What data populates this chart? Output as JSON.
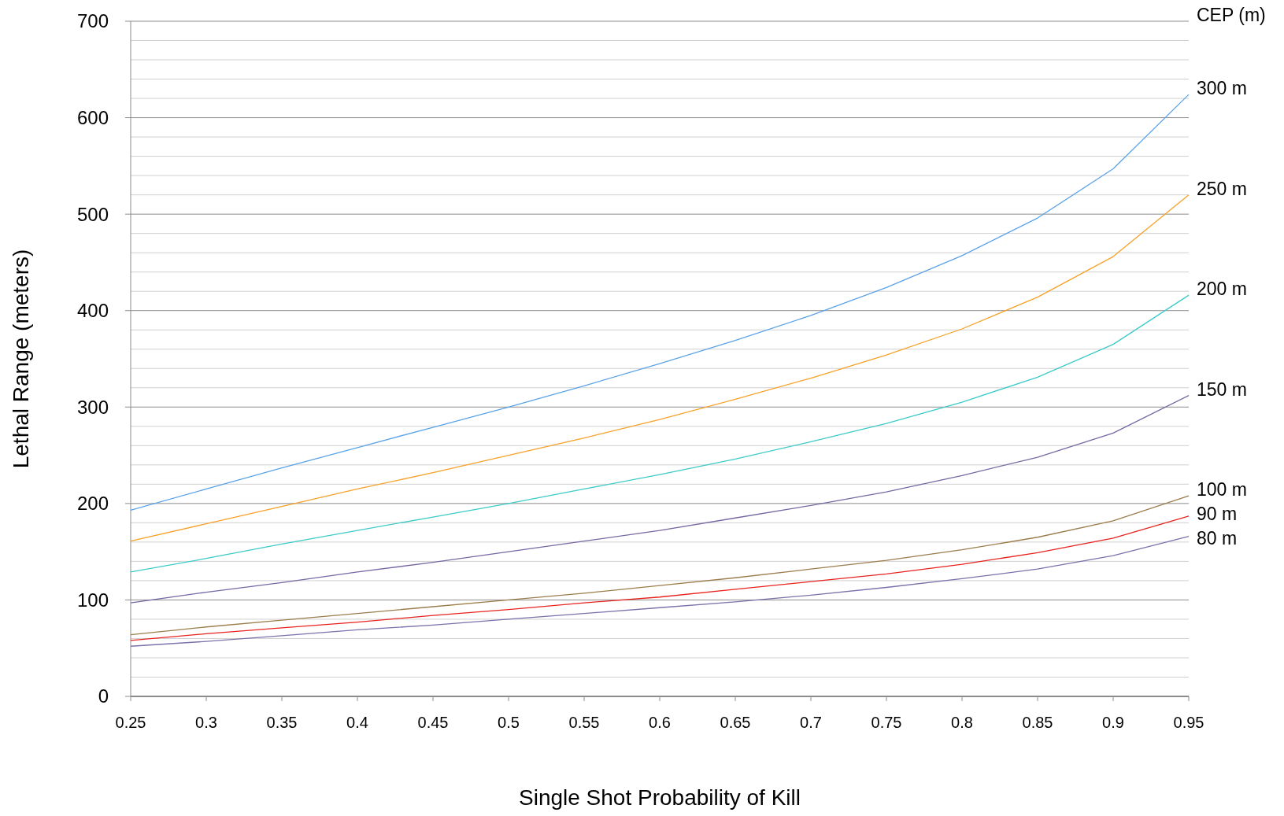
{
  "chart_data": {
    "type": "line",
    "xlabel": "Single Shot Probability of Kill",
    "ylabel": "Lethal Range (meters)",
    "legend_title": "CEP (m)",
    "x": [
      0.25,
      0.3,
      0.35,
      0.4,
      0.45,
      0.5,
      0.55,
      0.6,
      0.65,
      0.7,
      0.75,
      0.8,
      0.85,
      0.9,
      0.95
    ],
    "series": [
      {
        "name": "300 m",
        "color": "#5ba3e8",
        "values": [
          193,
          215,
          237,
          258,
          279,
          300,
          322,
          345,
          369,
          395,
          424,
          457,
          496,
          547,
          624
        ]
      },
      {
        "name": "250 m",
        "color": "#f7a128",
        "values": [
          161,
          179,
          197,
          215,
          232,
          250,
          268,
          287,
          308,
          330,
          354,
          381,
          414,
          456,
          520
        ]
      },
      {
        "name": "200 m",
        "color": "#3ccbc8",
        "values": [
          129,
          143,
          158,
          172,
          186,
          200,
          215,
          230,
          246,
          264,
          283,
          305,
          331,
          365,
          416
        ]
      },
      {
        "name": "150 m",
        "color": "#7768a3",
        "values": [
          97,
          108,
          118,
          129,
          139,
          150,
          161,
          172,
          185,
          198,
          212,
          229,
          248,
          273,
          312
        ]
      },
      {
        "name": "100 m",
        "color": "#9c7d4c",
        "values": [
          64,
          72,
          79,
          86,
          93,
          100,
          107,
          115,
          123,
          132,
          141,
          152,
          165,
          182,
          208
        ]
      },
      {
        "name": "90 m",
        "color": "#e8231f",
        "values": [
          58,
          65,
          71,
          77,
          84,
          90,
          97,
          103,
          111,
          119,
          127,
          137,
          149,
          164,
          187
        ]
      },
      {
        "name": "80 m",
        "color": "#7a72aa",
        "values": [
          52,
          57,
          63,
          69,
          74,
          80,
          86,
          92,
          98,
          105,
          113,
          122,
          132,
          146,
          166
        ]
      }
    ],
    "xlim": [
      0.25,
      0.95
    ],
    "xticks": [
      0.25,
      0.3,
      0.35,
      0.4,
      0.45,
      0.5,
      0.55,
      0.6,
      0.65,
      0.7,
      0.75,
      0.8,
      0.85,
      0.9,
      0.95
    ],
    "ylim": [
      0,
      700
    ],
    "yticks": [
      0,
      {
        "value": 20,
        "label": null
      },
      {
        "value": 40,
        "label": null
      },
      {
        "value": 60,
        "label": null
      },
      {
        "value": 80,
        "label": null
      },
      100,
      {
        "value": 120,
        "label": null
      },
      {
        "value": 140,
        "label": null
      },
      {
        "value": 160,
        "label": null
      },
      {
        "value": 180,
        "label": null
      },
      200,
      {
        "value": 220,
        "label": null
      },
      {
        "value": 240,
        "label": null
      },
      {
        "value": 260,
        "label": null
      },
      {
        "value": 280,
        "label": null
      },
      300,
      {
        "value": 320,
        "label": null
      },
      {
        "value": 340,
        "label": null
      },
      {
        "value": 360,
        "label": null
      },
      {
        "value": 380,
        "label": null
      },
      400,
      {
        "value": 420,
        "label": null
      },
      {
        "value": 440,
        "label": null
      },
      {
        "value": 460,
        "label": null
      },
      {
        "value": 480,
        "label": null
      },
      500,
      {
        "value": 520,
        "label": null
      },
      {
        "value": 540,
        "label": null
      },
      {
        "value": 560,
        "label": null
      },
      {
        "value": 580,
        "label": null
      },
      600,
      {
        "value": 620,
        "label": null
      },
      {
        "value": 640,
        "label": null
      },
      {
        "value": 660,
        "label": null
      },
      {
        "value": 680,
        "label": null
      },
      700
    ],
    "grid": "y",
    "legend": "right"
  }
}
